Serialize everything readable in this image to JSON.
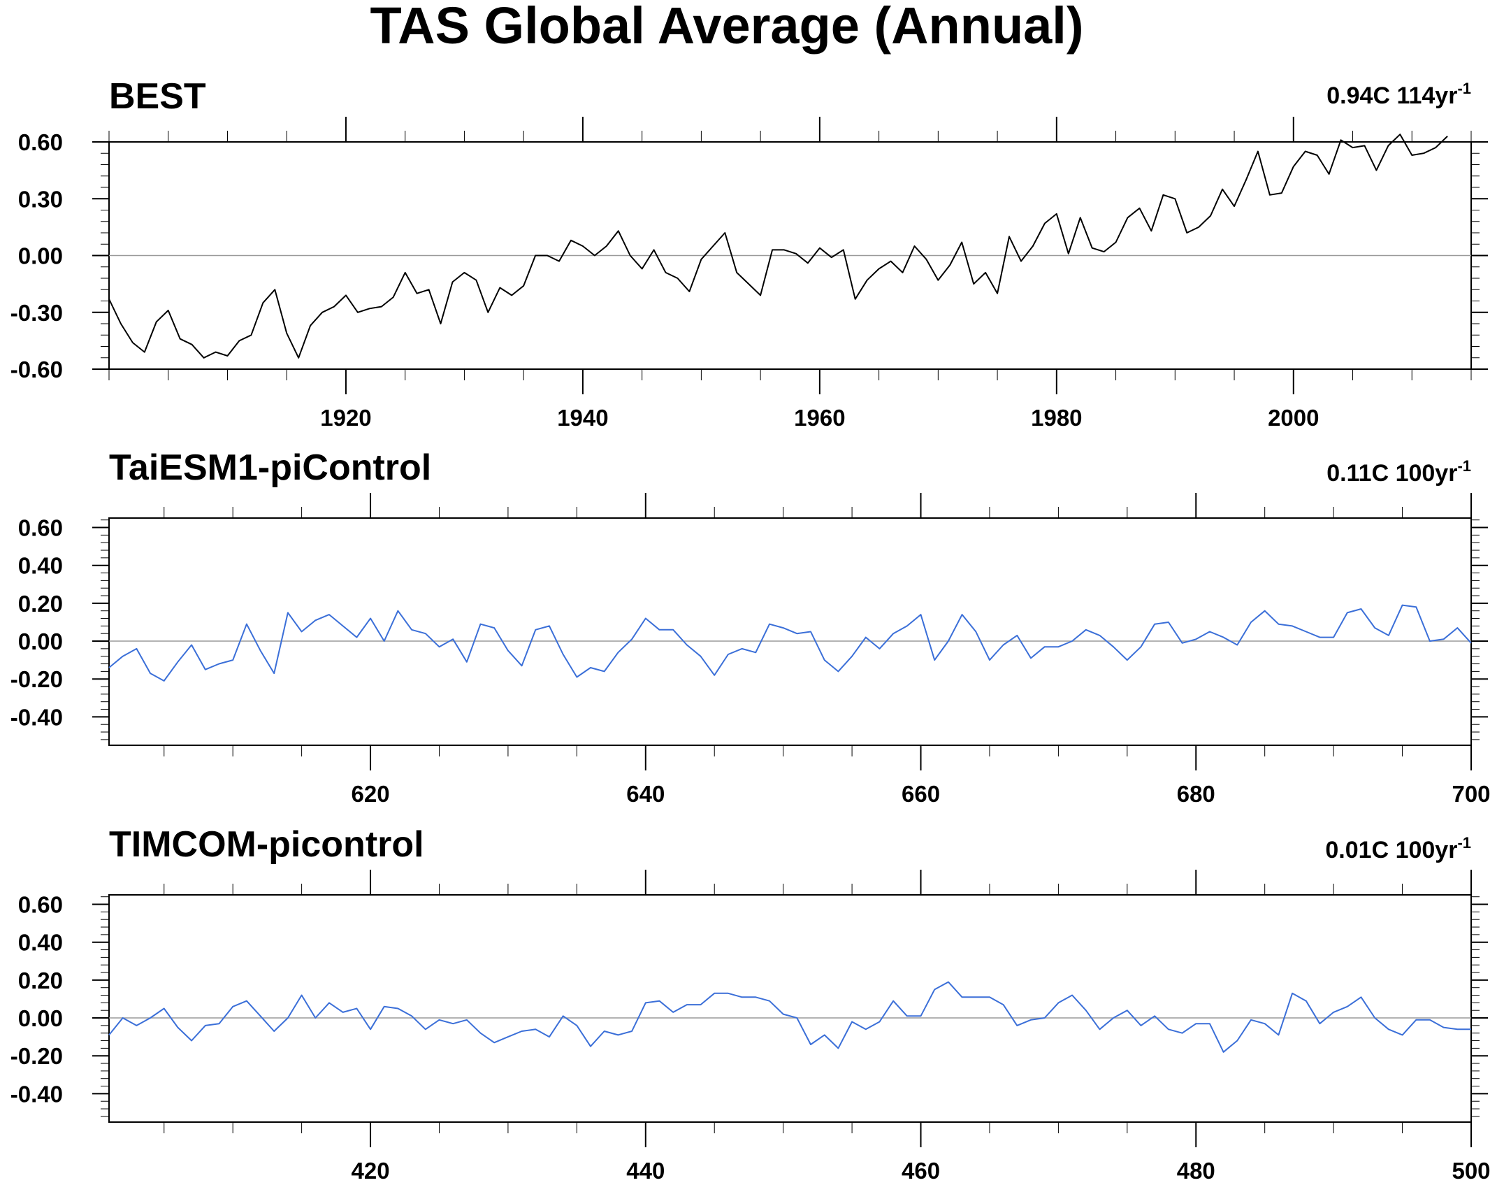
{
  "title": "TAS Global Average (Annual)",
  "chart_data": [
    {
      "type": "line",
      "title": "BEST",
      "trend": {
        "value": "0.94C 114yr",
        "exponent": "-1"
      },
      "color": "#000000",
      "xlim": [
        1900,
        2015
      ],
      "ylim": [
        -0.6,
        0.6
      ],
      "yticks": [
        -0.6,
        -0.3,
        0.0,
        0.3,
        0.6
      ],
      "ytick_labels": [
        "-0.60",
        "-0.30",
        "0.00",
        "0.30",
        "0.60"
      ],
      "xticks": [
        1920,
        1940,
        1960,
        1980,
        2000
      ],
      "xtick_labels": [
        "1920",
        "1940",
        "1960",
        "1980",
        "2000"
      ],
      "zero_line": true,
      "series": [
        {
          "x_start": 1900,
          "x_step": 1,
          "values": [
            -0.23,
            -0.36,
            -0.46,
            -0.51,
            -0.35,
            -0.29,
            -0.44,
            -0.47,
            -0.54,
            -0.51,
            -0.53,
            -0.45,
            -0.42,
            -0.25,
            -0.18,
            -0.41,
            -0.54,
            -0.37,
            -0.3,
            -0.27,
            -0.21,
            -0.3,
            -0.28,
            -0.27,
            -0.22,
            -0.09,
            -0.2,
            -0.18,
            -0.36,
            -0.14,
            -0.09,
            -0.13,
            -0.3,
            -0.17,
            -0.21,
            -0.16,
            0.0,
            0.0,
            -0.03,
            0.08,
            0.05,
            0.0,
            0.05,
            0.13,
            0.0,
            -0.07,
            0.03,
            -0.09,
            -0.12,
            -0.19,
            -0.02,
            0.05,
            0.12,
            -0.09,
            -0.15,
            -0.21,
            0.03,
            0.03,
            0.01,
            -0.04,
            0.04,
            -0.01,
            0.03,
            -0.23,
            -0.13,
            -0.07,
            -0.03,
            -0.09,
            0.05,
            -0.02,
            -0.13,
            -0.05,
            0.07,
            -0.15,
            -0.09,
            -0.2,
            0.1,
            -0.03,
            0.05,
            0.17,
            0.22,
            0.01,
            0.2,
            0.04,
            0.02,
            0.07,
            0.2,
            0.25,
            0.13,
            0.32,
            0.3,
            0.12,
            0.15,
            0.21,
            0.35,
            0.26,
            0.4,
            0.55,
            0.32,
            0.33,
            0.47,
            0.55,
            0.53,
            0.43,
            0.61,
            0.57,
            0.58,
            0.45,
            0.58,
            0.64,
            0.53,
            0.54,
            0.57,
            0.63
          ]
        }
      ]
    },
    {
      "type": "line",
      "title": "TaiESM1-piControl",
      "trend": {
        "value": "0.11C 100yr",
        "exponent": "-1"
      },
      "color": "#3b6fd8",
      "xlim": [
        601,
        700
      ],
      "ylim": [
        -0.55,
        0.65
      ],
      "yticks": [
        -0.4,
        -0.2,
        0.0,
        0.2,
        0.4,
        0.6
      ],
      "ytick_labels": [
        "-0.40",
        "-0.20",
        "0.00",
        "0.20",
        "0.40",
        "0.60"
      ],
      "xticks": [
        620,
        640,
        660,
        680,
        700
      ],
      "xtick_labels": [
        "620",
        "640",
        "660",
        "680",
        "700"
      ],
      "zero_line": true,
      "series": [
        {
          "x_start": 601,
          "x_step": 1,
          "values": [
            -0.14,
            -0.08,
            -0.04,
            -0.17,
            -0.21,
            -0.11,
            -0.02,
            -0.15,
            -0.12,
            -0.1,
            0.09,
            -0.05,
            -0.17,
            0.15,
            0.05,
            0.11,
            0.14,
            0.08,
            0.02,
            0.12,
            0.0,
            0.16,
            0.06,
            0.04,
            -0.03,
            0.01,
            -0.11,
            0.09,
            0.07,
            -0.05,
            -0.13,
            0.06,
            0.08,
            -0.07,
            -0.19,
            -0.14,
            -0.16,
            -0.06,
            0.01,
            0.12,
            0.06,
            0.06,
            -0.02,
            -0.08,
            -0.18,
            -0.07,
            -0.04,
            -0.06,
            0.09,
            0.07,
            0.04,
            0.05,
            -0.1,
            -0.16,
            -0.08,
            0.02,
            -0.04,
            0.04,
            0.08,
            0.14,
            -0.1,
            0.0,
            0.14,
            0.05,
            -0.1,
            -0.02,
            0.03,
            -0.09,
            -0.03,
            -0.03,
            0.0,
            0.06,
            0.03,
            -0.03,
            -0.1,
            -0.03,
            0.09,
            0.1,
            -0.01,
            0.01,
            0.05,
            0.02,
            -0.02,
            0.1,
            0.16,
            0.09,
            0.08,
            0.05,
            0.02,
            0.02,
            0.15,
            0.17,
            0.07,
            0.03,
            0.19,
            0.18,
            0.0,
            0.01,
            0.07,
            -0.01
          ]
        }
      ]
    },
    {
      "type": "line",
      "title": "TIMCOM-picontrol",
      "trend": {
        "value": "0.01C 100yr",
        "exponent": "-1"
      },
      "color": "#3b6fd8",
      "xlim": [
        401,
        500
      ],
      "ylim": [
        -0.55,
        0.65
      ],
      "yticks": [
        -0.4,
        -0.2,
        0.0,
        0.2,
        0.4,
        0.6
      ],
      "ytick_labels": [
        "-0.40",
        "-0.20",
        "0.00",
        "0.20",
        "0.40",
        "0.60"
      ],
      "xticks": [
        420,
        440,
        460,
        480,
        500
      ],
      "xtick_labels": [
        "420",
        "440",
        "460",
        "480",
        "500"
      ],
      "zero_line": true,
      "series": [
        {
          "x_start": 401,
          "x_step": 1,
          "values": [
            -0.09,
            0.0,
            -0.04,
            0.0,
            0.05,
            -0.05,
            -0.12,
            -0.04,
            -0.03,
            0.06,
            0.09,
            0.01,
            -0.07,
            0.0,
            0.12,
            0.0,
            0.08,
            0.03,
            0.05,
            -0.06,
            0.06,
            0.05,
            0.01,
            -0.06,
            -0.01,
            -0.03,
            -0.01,
            -0.08,
            -0.13,
            -0.1,
            -0.07,
            -0.06,
            -0.1,
            0.01,
            -0.04,
            -0.15,
            -0.07,
            -0.09,
            -0.07,
            0.08,
            0.09,
            0.03,
            0.07,
            0.07,
            0.13,
            0.13,
            0.11,
            0.11,
            0.09,
            0.02,
            0.0,
            -0.14,
            -0.09,
            -0.16,
            -0.02,
            -0.06,
            -0.02,
            0.09,
            0.01,
            0.01,
            0.15,
            0.19,
            0.11,
            0.11,
            0.11,
            0.07,
            -0.04,
            -0.01,
            0.0,
            0.08,
            0.12,
            0.04,
            -0.06,
            0.0,
            0.04,
            -0.04,
            0.01,
            -0.06,
            -0.08,
            -0.03,
            -0.03,
            -0.18,
            -0.12,
            -0.01,
            -0.03,
            -0.09,
            0.13,
            0.09,
            -0.03,
            0.03,
            0.06,
            0.11,
            0.0,
            -0.06,
            -0.09,
            -0.01,
            -0.01,
            -0.05,
            -0.06,
            -0.06
          ]
        }
      ]
    }
  ]
}
